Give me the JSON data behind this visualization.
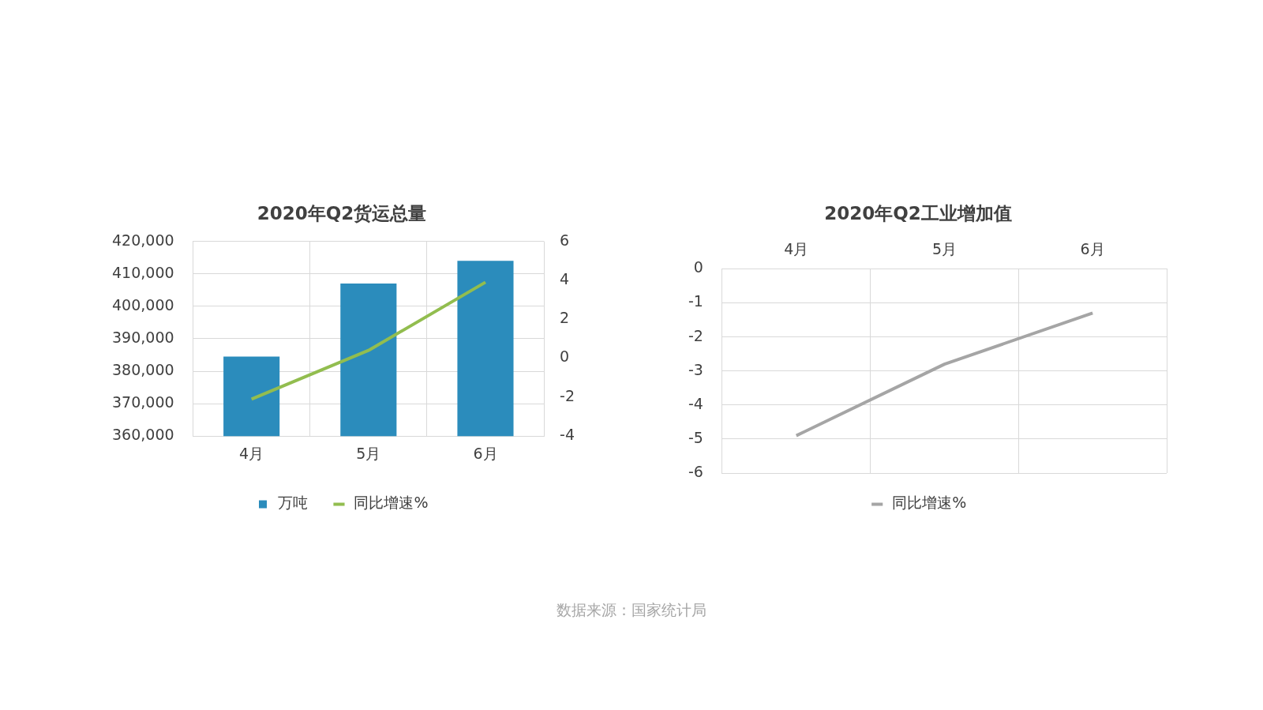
{
  "chart_data": [
    {
      "type": "bar",
      "title": "2020年Q2货运总量",
      "categories": [
        "4月",
        "5月",
        "6月"
      ],
      "series": [
        {
          "name": "万吨",
          "type": "bar",
          "color": "#2b8cbc",
          "values": [
            384500,
            407000,
            414000
          ]
        },
        {
          "name": "同比增速%",
          "type": "line",
          "color": "#92bd4f",
          "axis": "y2",
          "values": [
            -2.1,
            0.4,
            3.9
          ]
        }
      ],
      "ylim": [
        360000,
        420000
      ],
      "yticks": [
        {
          "value": 360000,
          "label": "360,000"
        },
        {
          "value": 370000,
          "label": "370,000"
        },
        {
          "value": 380000,
          "label": "380,000"
        },
        {
          "value": 390000,
          "label": "390,000"
        },
        {
          "value": 400000,
          "label": "400,000"
        },
        {
          "value": 410000,
          "label": "410,000"
        },
        {
          "value": 420000,
          "label": "420,000"
        }
      ],
      "y2lim": [
        -4,
        6
      ],
      "y2ticks": [
        -4,
        -2,
        0,
        2,
        4,
        6
      ],
      "grid": true,
      "legend": "bottom",
      "marker": "none",
      "annotations": [
        "数据来源：国家统计局"
      ]
    },
    {
      "type": "line",
      "title": "2020年Q2工业增加值",
      "categories": [
        "4月",
        "5月",
        "6月"
      ],
      "series": [
        {
          "name": "同比增速%",
          "color": "#a5a5a5",
          "values": [
            -4.9,
            -2.8,
            -1.3
          ]
        }
      ],
      "ylim": [
        -6,
        0
      ],
      "yticks": [
        -6,
        -5,
        -4,
        -3,
        -2,
        -1,
        0
      ],
      "grid": true,
      "legend": "bottom",
      "marker": "none"
    }
  ]
}
